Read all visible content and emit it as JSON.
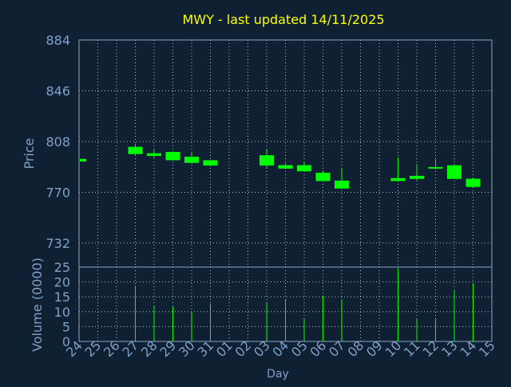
{
  "chart_data": {
    "type": "candlestick",
    "title": "MWY - last updated 14/11/2025",
    "xlabel": "Day",
    "price_panel": {
      "ylabel": "Price",
      "ylim": [
        714,
        884
      ],
      "y_ticks": [
        884,
        846,
        808,
        770,
        732
      ]
    },
    "volume_panel": {
      "ylabel": "Volume (0000)",
      "ylim": [
        0,
        25
      ],
      "y_ticks": [
        25,
        20,
        15,
        10,
        5,
        0
      ]
    },
    "x_tick_labels": [
      "24",
      "25",
      "26",
      "27",
      "28",
      "29",
      "30",
      "31",
      "01",
      "02",
      "03",
      "04",
      "05",
      "06",
      "07",
      "08",
      "09",
      "10",
      "11",
      "12",
      "13",
      "14",
      "15"
    ],
    "candles": [
      {
        "day": "24",
        "open": 793.0,
        "close": 795.0,
        "high": 795.0,
        "low": 793.0,
        "volume": null
      },
      {
        "day": "27",
        "open": 798.6,
        "close": 804.0,
        "high": 806.0,
        "low": 798.0,
        "volume": 18.7
      },
      {
        "day": "28",
        "open": 797.2,
        "close": 799.2,
        "high": 801.7,
        "low": 796.0,
        "volume": 11.9
      },
      {
        "day": "29",
        "open": 794.0,
        "close": 800.2,
        "high": 800.6,
        "low": 793.8,
        "volume": 11.6
      },
      {
        "day": "30",
        "open": 792.0,
        "close": 796.6,
        "high": 800.3,
        "low": 791.7,
        "volume": 9.8
      },
      {
        "day": "31",
        "open": 790.0,
        "close": 794.0,
        "high": 794.0,
        "low": 789.4,
        "volume": 12.7
      },
      {
        "day": "03",
        "open": 790.0,
        "close": 797.7,
        "high": 802.3,
        "low": 788.3,
        "volume": 12.9
      },
      {
        "day": "04",
        "open": 787.7,
        "close": 790.3,
        "high": 791.6,
        "low": 787.4,
        "volume": 14.0
      },
      {
        "day": "05",
        "open": 785.7,
        "close": 790.3,
        "high": 792.9,
        "low": 785.3,
        "volume": 7.5
      },
      {
        "day": "06",
        "open": 778.4,
        "close": 784.6,
        "high": 786.0,
        "low": 778.0,
        "volume": 15.4
      },
      {
        "day": "07",
        "open": 772.8,
        "close": 778.7,
        "high": 787.4,
        "low": 772.6,
        "volume": 14.3
      },
      {
        "day": "10",
        "open": 778.4,
        "close": 780.6,
        "high": 796.0,
        "low": 778.0,
        "volume": 24.5
      },
      {
        "day": "11",
        "open": 780.0,
        "close": 782.3,
        "high": 791.0,
        "low": 779.0,
        "volume": 7.5
      },
      {
        "day": "12",
        "open": 787.7,
        "close": 788.9,
        "high": 794.6,
        "low": 787.2,
        "volume": 7.5
      },
      {
        "day": "13",
        "open": 780.0,
        "close": 790.2,
        "high": 791.2,
        "low": 780.0,
        "volume": 17.4
      },
      {
        "day": "14",
        "open": 774.0,
        "close": 780.1,
        "high": 780.7,
        "low": 773.4,
        "volume": 19.5
      }
    ],
    "grid": true,
    "colors": {
      "background": "#0f2032",
      "up": "#00ff00",
      "down": "#ff0000",
      "title": "#ffff00",
      "axis_text": "#7fa0c8",
      "frame": "#8aa6c4",
      "grid": "#a8c0d8"
    }
  }
}
